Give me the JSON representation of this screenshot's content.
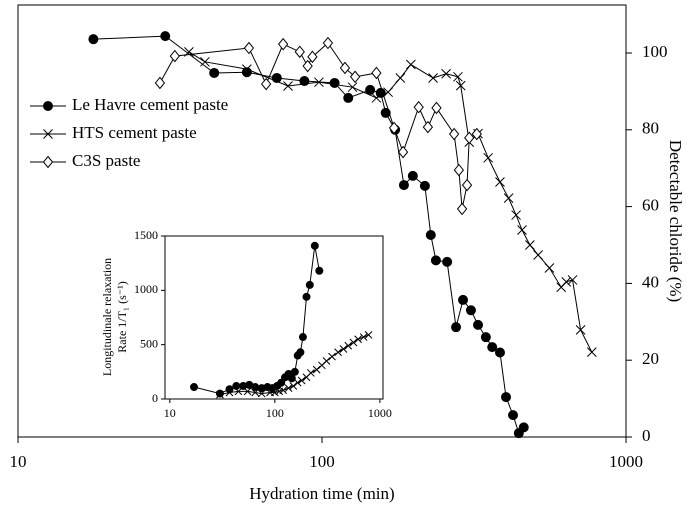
{
  "chart_data": [
    {
      "type": "line",
      "x_scale": "log",
      "y_axis_side": "right",
      "legend_position": "center left",
      "xlabel": "Hydration time (min)",
      "ylabel": "Detectable chloride (%)",
      "xlim": [
        10,
        1000
      ],
      "xticks": [
        10,
        100,
        1000
      ],
      "ylim": [
        0,
        112.5
      ],
      "yticks": [
        0,
        20,
        40,
        60,
        80,
        100
      ],
      "series": [
        {
          "name": "Le Havre cement paste",
          "color": "#000000",
          "marker": "circle",
          "x": [
            17.7,
            30.5,
            44.2,
            56.6,
            71,
            87.5,
            110,
            122,
            144,
            156,
            162,
            174,
            186,
            199,
            218,
            228,
            237,
            258,
            276,
            291,
            309,
            326,
            346,
            363,
            385,
            403,
            425,
            444,
            461
          ],
          "values": [
            103.6,
            104.4,
            94.8,
            95,
            93.5,
            92.7,
            92.2,
            88.3,
            90.4,
            89.6,
            84.4,
            80,
            65.6,
            68,
            65.4,
            52.6,
            46,
            45.6,
            28.6,
            35.7,
            33,
            29.2,
            26,
            23.4,
            22,
            10.4,
            5.7,
            1,
            2.5
          ]
        },
        {
          "name": "HTS cement paste",
          "color": "#000000",
          "marker": "x",
          "x": [
            36.5,
            41.2,
            56.6,
            77.3,
            97.7,
            126,
            151,
            165,
            181,
            196,
            232,
            256,
            280,
            286,
            305,
            326,
            352,
            385,
            411,
            435,
            455,
            483,
            514,
            560,
            612,
            636,
            667,
            709,
            772
          ],
          "values": [
            100.3,
            97.7,
            95.8,
            91.4,
            92.4,
            91.1,
            88.3,
            89.8,
            93.5,
            97,
            93.5,
            94.6,
            93.8,
            91.5,
            76.8,
            79,
            72.7,
            66.4,
            62.2,
            57.8,
            53.9,
            50,
            47.4,
            44,
            39,
            40.4,
            40.9,
            27.9,
            22.1
          ]
        },
        {
          "name": "C3S paste",
          "color": "#000000",
          "marker": "diamond",
          "x": [
            29.3,
            32.8,
            57.5,
            65.5,
            74.5,
            84.5,
            89.7,
            93,
            104.6,
            119,
            128.5,
            151,
            172.6,
            184.8,
            208,
            223,
            238,
            272,
            282,
            289,
            300,
            305,
            323
          ],
          "values": [
            92.2,
            99.2,
            101.3,
            91.9,
            102.3,
            100.3,
            96.6,
            99,
            102.6,
            96.1,
            93.8,
            94.8,
            80.5,
            74.2,
            85.9,
            80.7,
            85.7,
            78.9,
            69.5,
            59.4,
            65.6,
            77.9,
            78.9
          ]
        }
      ]
    },
    {
      "type": "line",
      "x_scale": "log",
      "y_axis_side": "left",
      "ylabel": [
        "Longitudinale relaxation",
        "Rate 1/T₁ (s⁻¹)"
      ],
      "xlim": [
        9,
        1070
      ],
      "xticks": [
        10,
        100,
        1000
      ],
      "ylim": [
        0,
        1500
      ],
      "yticks": [
        0,
        500,
        1000,
        1500
      ],
      "series": [
        {
          "color": "#000000",
          "marker": "circle",
          "x": [
            17,
            30,
            37,
            43,
            50,
            57,
            65,
            75,
            85,
            95,
            105,
            115,
            125,
            135,
            145,
            155,
            165,
            175,
            185,
            200,
            215,
            240,
            265
          ],
          "values": [
            110,
            50,
            90,
            120,
            120,
            130,
            110,
            100,
            110,
            100,
            120,
            150,
            200,
            230,
            190,
            250,
            400,
            430,
            570,
            940,
            1050,
            1410,
            1180
          ]
        },
        {
          "color": "#000000",
          "marker": "x",
          "x": [
            30,
            37,
            45,
            55,
            65,
            75,
            90,
            100,
            110,
            120,
            135,
            150,
            165,
            180,
            200,
            220,
            250,
            280,
            310,
            350,
            400,
            450,
            500,
            560,
            620,
            700,
            780
          ],
          "values": [
            40,
            60,
            70,
            70,
            60,
            50,
            60,
            60,
            70,
            80,
            100,
            120,
            150,
            170,
            200,
            240,
            270,
            310,
            350,
            390,
            430,
            460,
            490,
            520,
            550,
            570,
            590
          ]
        }
      ]
    }
  ]
}
